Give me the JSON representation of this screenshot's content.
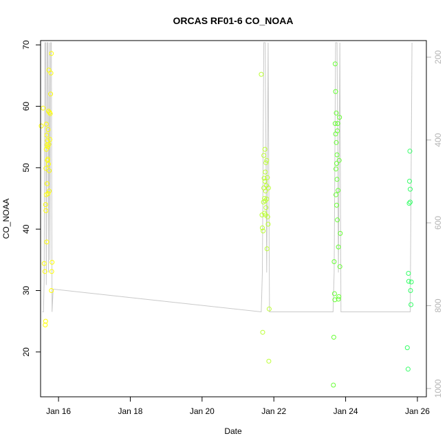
{
  "chart_data": {
    "type": "scatter",
    "title": "ORCAS RF01-6 CO_NOAA",
    "xlabel": "Date",
    "ylabel": "CO_NOAA",
    "xlim": [
      15.5,
      26.25
    ],
    "ylim": [
      12.7,
      70.7
    ],
    "x_ticks": [
      16,
      18,
      20,
      22,
      24,
      26
    ],
    "x_tick_labels": [
      "Jan 16",
      "Jan 18",
      "Jan 20",
      "Jan 22",
      "Jan 24",
      "Jan 26"
    ],
    "y_ticks": [
      20,
      30,
      40,
      50,
      60,
      70
    ],
    "y_tick_labels": [
      "20",
      "30",
      "40",
      "50",
      "60",
      "70"
    ],
    "y2_ticks": [
      200,
      400,
      600,
      800,
      1000
    ],
    "y2_tick_labels": [
      "200",
      "400",
      "600",
      "800",
      "1000"
    ],
    "y2lim": [
      1020,
      160
    ],
    "y2_reversed": true,
    "grid": false,
    "colors": {
      "series_1": "#ffff00",
      "series_2": "#bbff33",
      "series_3": "#66ff33",
      "series_4": "#33ff66",
      "pressure_line": "#c8c8c8",
      "right_axis": "#b4b4b4"
    },
    "series": [
      {
        "color": "#ffff00",
        "x": [
          15.52,
          15.57,
          15.6,
          15.62,
          15.63,
          15.64,
          15.64,
          15.65,
          15.65,
          15.66,
          15.66,
          15.66,
          15.67,
          15.67,
          15.68,
          15.68,
          15.69,
          15.69,
          15.7,
          15.7,
          15.71,
          15.71,
          15.72,
          15.72,
          15.73,
          15.73,
          15.74,
          15.74,
          15.75,
          15.76,
          15.77,
          15.78,
          15.79,
          15.8,
          15.8,
          15.81,
          15.82
        ],
        "y": [
          56.8,
          59.7,
          34.4,
          33.1,
          24.4,
          25.0,
          44.0,
          43.0,
          49.9,
          53.0,
          57.1,
          45.6,
          37.9,
          55.3,
          53.7,
          47.4,
          51.2,
          54.4,
          53.4,
          51.4,
          56.2,
          45.8,
          50.6,
          59.2,
          53.8,
          65.9,
          49.5,
          46.2,
          59.0,
          54.6,
          58.8,
          62.0,
          65.4,
          68.6,
          30.0,
          33.1,
          34.6
        ]
      },
      {
        "color": "#bbff33",
        "x": [
          21.65,
          21.67,
          21.68,
          21.69,
          21.7,
          21.71,
          21.72,
          21.72,
          21.73,
          21.74,
          21.74,
          21.75,
          21.75,
          21.76,
          21.76,
          21.77,
          21.77,
          21.78,
          21.78,
          21.79,
          21.8,
          21.8,
          21.81,
          21.82,
          21.83,
          21.84,
          21.85,
          21.86,
          21.87
        ],
        "y": [
          65.2,
          42.3,
          40.2,
          23.2,
          39.7,
          44.4,
          46.7,
          52.0,
          48.3,
          42.6,
          45.0,
          47.8,
          53.0,
          44.6,
          49.3,
          42.3,
          46.2,
          50.8,
          43.5,
          47.1,
          51.2,
          44.9,
          36.8,
          48.4,
          42.0,
          40.8,
          46.7,
          18.5,
          27.0
        ]
      },
      {
        "color": "#66ff33",
        "x": [
          23.66,
          23.67,
          23.68,
          23.69,
          23.7,
          23.71,
          23.71,
          23.72,
          23.72,
          23.73,
          23.73,
          23.74,
          23.74,
          23.75,
          23.75,
          23.76,
          23.76,
          23.77,
          23.77,
          23.78,
          23.79,
          23.8,
          23.8,
          23.81,
          23.82,
          23.83,
          23.84,
          23.85
        ],
        "y": [
          14.6,
          22.4,
          34.7,
          29.5,
          28.5,
          57.2,
          66.9,
          55.5,
          62.4,
          49.8,
          45.6,
          54.1,
          58.9,
          50.7,
          43.9,
          48.1,
          52.1,
          56.0,
          41.5,
          57.2,
          46.3,
          37.1,
          28.6,
          29.0,
          51.2,
          58.2,
          33.9,
          39.3
        ]
      },
      {
        "color": "#33ff66",
        "x": [
          25.72,
          25.74,
          25.75,
          25.76,
          25.77,
          25.78,
          25.79,
          25.8,
          25.8,
          25.81,
          25.82,
          25.83
        ],
        "y": [
          20.7,
          17.2,
          32.8,
          31.5,
          44.2,
          47.8,
          52.7,
          44.4,
          46.5,
          30.0,
          27.7,
          31.4
        ]
      }
    ],
    "pressure_line": {
      "color": "#c8c8c8",
      "x": [
        15.55,
        15.58,
        15.6,
        15.62,
        15.64,
        15.66,
        15.68,
        15.7,
        15.72,
        15.74,
        15.76,
        15.78,
        15.8,
        15.82,
        15.85,
        21.65,
        21.68,
        21.72,
        21.76,
        21.8,
        21.84,
        21.88,
        23.65,
        23.68,
        23.72,
        23.76,
        23.8,
        23.84,
        23.87,
        25.8,
        25.85
      ],
      "y": [
        815,
        815,
        740,
        165,
        165,
        750,
        165,
        165,
        720,
        165,
        690,
        165,
        165,
        815,
        760,
        815,
        720,
        165,
        165,
        720,
        165,
        815,
        815,
        720,
        165,
        165,
        720,
        165,
        815,
        815,
        165
      ]
    }
  }
}
